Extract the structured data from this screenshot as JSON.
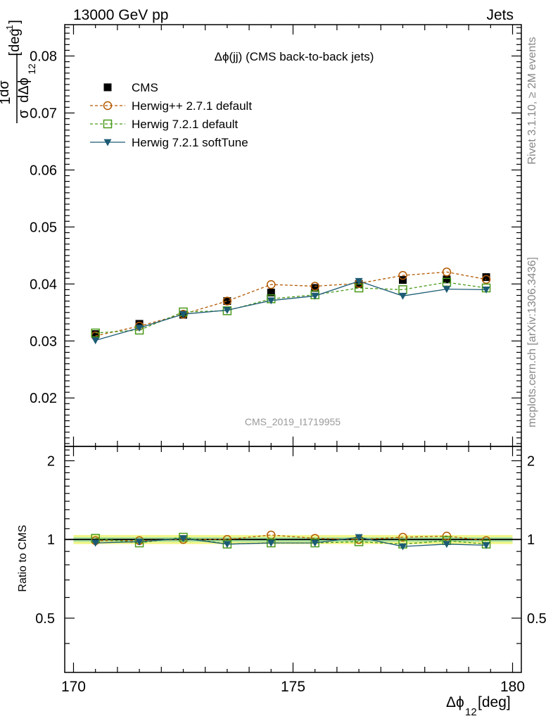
{
  "header": {
    "energy_label": "13000 GeV pp",
    "process_label": "Jets",
    "side_label_rivet": "Rivet 3.1.10, ≥ 2M events",
    "side_label_mcplots": "mcplots.cern.ch [arXiv:1306.3436]",
    "analysis_id": "CMS_2019_I1719955"
  },
  "chart_data": {
    "type": "line",
    "title": "Δϕ(jj) (CMS back-to-back jets)",
    "xlabel": {
      "base": "Δϕ",
      "sub": "12",
      "unit": " [deg]"
    },
    "ylabel": {
      "prefix": "1",
      "frac_num": "dσ",
      "frac_den_sigma": "σ",
      "frac_den_rest": "dΔϕ",
      "frac_den_sub": "12",
      "unit": "[deg",
      "unit_sup": "-1",
      "unit_close": "]"
    },
    "ratio_ylabel": "Ratio to CMS",
    "xlim": [
      169.8,
      180.2
    ],
    "ylim": [
      0.0115,
      0.0855
    ],
    "ratio_ylim": [
      0.31,
      2.27
    ],
    "x_ticks": [
      170,
      175,
      180
    ],
    "y_ticks": [
      0.02,
      0.03,
      0.04,
      0.05,
      0.06,
      0.07,
      0.08
    ],
    "ratio_ticks": [
      0.5,
      1,
      2
    ],
    "x": [
      170.5,
      171.5,
      172.5,
      173.5,
      174.5,
      175.5,
      176.5,
      177.5,
      178.5,
      179.4
    ],
    "data": {
      "name": "CMS",
      "values": [
        0.0312,
        0.033,
        0.0346,
        0.037,
        0.0385,
        0.0393,
        0.04,
        0.0407,
        0.0408,
        0.0412
      ],
      "errors": [
        0.0004,
        0.0004,
        0.0004,
        0.0004,
        0.0005,
        0.0005,
        0.0005,
        0.0005,
        0.0006,
        0.0006
      ]
    },
    "series": [
      {
        "name": "Herwig++ 2.7.1 default",
        "color": "#b35900",
        "marker": "open-circle",
        "dash": true,
        "values": [
          0.0309,
          0.0326,
          0.0347,
          0.037,
          0.0399,
          0.0396,
          0.0401,
          0.0415,
          0.0421,
          0.0408
        ],
        "ratio": [
          0.99,
          0.99,
          1.0,
          1.0,
          1.04,
          1.01,
          1.0,
          1.02,
          1.03,
          0.99
        ]
      },
      {
        "name": "Herwig 7.2.1 default",
        "color": "#4a9a1a",
        "marker": "open-square",
        "dash": true,
        "values": [
          0.0314,
          0.0319,
          0.0351,
          0.0353,
          0.0374,
          0.0381,
          0.0393,
          0.039,
          0.0403,
          0.0393
        ],
        "ratio": [
          1.01,
          0.97,
          1.02,
          0.96,
          0.97,
          0.97,
          0.98,
          0.96,
          0.99,
          0.96
        ]
      },
      {
        "name": "Herwig 7.2.1 softTune",
        "color": "#1c5b74",
        "marker": "filled-triangle-down",
        "dash": false,
        "values": [
          0.0301,
          0.0323,
          0.0347,
          0.0354,
          0.0371,
          0.0379,
          0.0405,
          0.0379,
          0.0391,
          0.039
        ],
        "ratio": [
          0.97,
          0.98,
          1.01,
          0.96,
          0.97,
          0.97,
          1.02,
          0.94,
          0.96,
          0.95
        ]
      }
    ],
    "ratio_band": {
      "inner": 0.02,
      "outer": 0.04
    }
  }
}
